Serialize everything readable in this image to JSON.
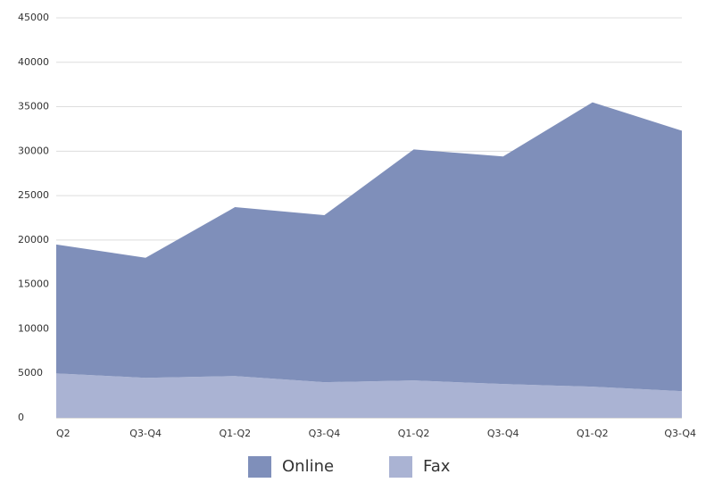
{
  "chart_data": {
    "type": "area",
    "stacked": true,
    "categories": [
      "Q2",
      "Q3-Q4",
      "Q1-Q2",
      "Q3-Q4",
      "Q1-Q2",
      "Q3-Q4",
      "Q1-Q2",
      "Q3-Q4"
    ],
    "series": [
      {
        "name": "Online",
        "color": "#7f8fba",
        "values": [
          14500,
          13500,
          19000,
          18800,
          26000,
          25600,
          32000,
          29300
        ]
      },
      {
        "name": "Fax",
        "color": "#aab3d3",
        "values": [
          5000,
          4500,
          4700,
          4000,
          4200,
          3800,
          3500,
          3000
        ]
      }
    ],
    "ylim": [
      0,
      45000
    ],
    "yticks": [
      0,
      5000,
      10000,
      15000,
      20000,
      25000,
      30000,
      35000,
      40000,
      45000
    ],
    "grid": true,
    "legend": "bottom"
  }
}
